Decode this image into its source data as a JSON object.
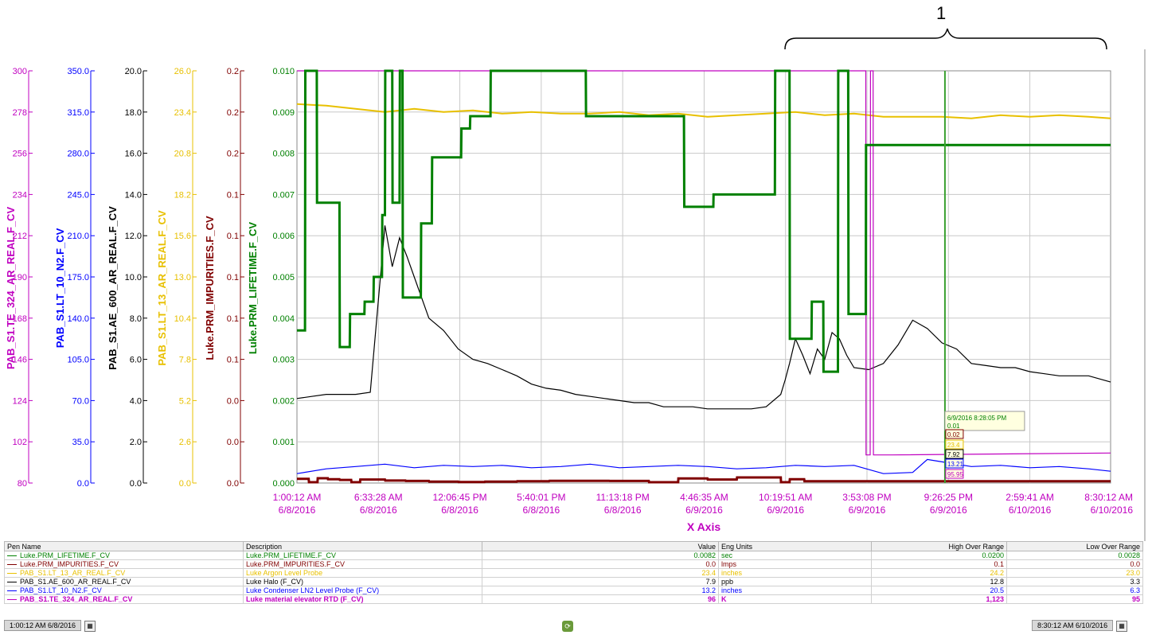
{
  "annotation": {
    "label": "1"
  },
  "chart_data": {
    "type": "line",
    "x_label": "X Axis",
    "x_ticks": [
      {
        "time": "1:00:12 AM",
        "date": "6/8/2016"
      },
      {
        "time": "6:33:28 AM",
        "date": "6/8/2016"
      },
      {
        "time": "12:06:45 PM",
        "date": "6/8/2016"
      },
      {
        "time": "5:40:01 PM",
        "date": "6/8/2016"
      },
      {
        "time": "11:13:18 PM",
        "date": "6/8/2016"
      },
      {
        "time": "4:46:35 AM",
        "date": "6/9/2016"
      },
      {
        "time": "10:19:51 AM",
        "date": "6/9/2016"
      },
      {
        "time": "3:53:08 PM",
        "date": "6/9/2016"
      },
      {
        "time": "9:26:25 PM",
        "date": "6/9/2016"
      },
      {
        "time": "2:59:41 AM",
        "date": "6/10/2016"
      },
      {
        "time": "8:30:12 AM",
        "date": "6/10/2016"
      }
    ],
    "x_hours": [
      0,
      5.5546,
      11.1093,
      16.6639,
      22.2186,
      27.7732,
      33.3278,
      38.8825,
      44.4371,
      49.9918,
      55.5
    ],
    "grid": true,
    "y_axes": [
      {
        "name": "PAB_S1.TE_324_AR_REAL.F_CV",
        "color": "#c000c0",
        "ticks": [
          "300",
          "278",
          "256",
          "234",
          "212",
          "190",
          "168",
          "146",
          "124",
          "102",
          "80"
        ],
        "range": [
          80,
          300
        ]
      },
      {
        "name": "PAB_S1.LT_10_N2.F_CV",
        "color": "#0000ff",
        "ticks": [
          "350.0",
          "315.0",
          "280.0",
          "245.0",
          "210.0",
          "175.0",
          "140.0",
          "105.0",
          "70.0",
          "35.0",
          "0.0"
        ],
        "range": [
          0,
          350
        ]
      },
      {
        "name": "PAB_S1.AE_600_AR_REAL.F_CV",
        "color": "#000000",
        "ticks": [
          "20.0",
          "18.0",
          "16.0",
          "14.0",
          "12.0",
          "10.0",
          "8.0",
          "6.0",
          "4.0",
          "2.0",
          "0.0"
        ],
        "range": [
          0,
          20
        ]
      },
      {
        "name": "PAB_S1.LT_13_AR_REAL.F_CV",
        "color": "#e8c000",
        "ticks": [
          "26.0",
          "23.4",
          "20.8",
          "18.2",
          "15.6",
          "13.0",
          "10.4",
          "7.8",
          "5.2",
          "2.6",
          "0.0"
        ],
        "range": [
          0,
          26
        ]
      },
      {
        "name": "Luke.PRM_IMPURITIES.F_CV",
        "color": "#800000",
        "ticks": [
          "0.2",
          "0.2",
          "0.2",
          "0.1",
          "0.1",
          "0.1",
          "0.1",
          "0.1",
          "0.0",
          "0.0",
          "0.0"
        ],
        "range": [
          0,
          0.2
        ]
      },
      {
        "name": "Luke.PRM_LIFETIME.F_CV",
        "color": "#008000",
        "ticks": [
          "0.010",
          "0.009",
          "0.008",
          "0.007",
          "0.006",
          "0.005",
          "0.004",
          "0.003",
          "0.002",
          "0.001",
          "0.000"
        ],
        "range": [
          0,
          0.01
        ]
      }
    ],
    "series": [
      {
        "name": "Luke.PRM_LIFETIME.F_CV",
        "color": "#008000",
        "axis": 5,
        "step": true,
        "x": [
          0,
          0.55,
          0.57,
          1.35,
          1.37,
          2.9,
          2.92,
          3.6,
          3.62,
          4.3,
          4.32,
          4.6,
          4.62,
          5.22,
          5.24,
          5.8,
          5.82,
          6.0,
          6.02,
          6.5,
          6.52,
          7.0,
          7.02,
          7.2,
          7.22,
          7.9,
          7.92,
          8.45,
          8.47,
          9.2,
          9.22,
          11.2,
          11.22,
          11.8,
          11.82,
          13.2,
          13.22,
          14.9,
          14.92,
          17.2,
          17.22,
          19.7,
          19.72,
          26.4,
          26.42,
          28.4,
          28.42,
          30.2,
          30.22,
          32.6,
          32.62,
          33.6,
          33.62,
          34.2,
          34.22,
          35.1,
          35.12,
          35.9,
          35.92,
          36.9,
          36.92,
          37.6,
          37.62,
          38.3,
          38.32,
          38.8,
          38.82,
          41.1,
          41.12,
          55.5
        ],
        "y": [
          0.0037,
          0.0037,
          0.01,
          0.01,
          0.0068,
          0.0068,
          0.0033,
          0.0033,
          0.0041,
          0.0041,
          0.0041,
          0.0041,
          0.0044,
          0.0044,
          0.005,
          0.005,
          0.0065,
          0.0065,
          0.01,
          0.01,
          0.0068,
          0.0068,
          0.01,
          0.01,
          0.0045,
          0.0045,
          0.0045,
          0.0045,
          0.0063,
          0.0063,
          0.0079,
          0.0079,
          0.0086,
          0.0086,
          0.0089,
          0.0089,
          0.01,
          0.01,
          0.01,
          0.01,
          0.01,
          0.01,
          0.0089,
          0.0089,
          0.0067,
          0.0067,
          0.007,
          0.007,
          0.007,
          0.007,
          0.01,
          0.01,
          0.0035,
          0.0035,
          0.0035,
          0.0035,
          0.0044,
          0.0044,
          0.0027,
          0.0027,
          0.01,
          0.01,
          0.0041,
          0.0041,
          0.0041,
          0.0041,
          0.0082,
          0.0082,
          0.0082,
          0.0082
        ]
      },
      {
        "name": "Luke.PRM_IMPURITIES.F_CV",
        "color": "#800000",
        "axis": 4,
        "step": true,
        "x": [
          0,
          0.8,
          0.82,
          1.4,
          1.42,
          2.1,
          2.12,
          2.9,
          2.92,
          3.7,
          3.72,
          4.3,
          4.32,
          4.8,
          4.82,
          5.2,
          5.22,
          6.0,
          6.02,
          6.5,
          6.52,
          7.4,
          7.42,
          9.0,
          9.02,
          11.0,
          11.02,
          12.8,
          12.82,
          15.0,
          15.02,
          17.2,
          17.22,
          19.0,
          19.02,
          21.3,
          21.32,
          24.0,
          24.02,
          26.0,
          26.02,
          28.0,
          28.02,
          30.0,
          30.02,
          33.0,
          33.02,
          33.6,
          33.62,
          34.6,
          34.62,
          35.1,
          35.12,
          36.2,
          36.22,
          36.7,
          36.72,
          37.5,
          37.52,
          38.3,
          38.32,
          38.8,
          38.82,
          55.5
        ],
        "y": [
          0.002,
          0.002,
          0.0004,
          0.0004,
          0.0023,
          0.0023,
          0.0018,
          0.0018,
          0.0015,
          0.0015,
          0.0004,
          0.0004,
          0.0017,
          0.0017,
          0.0017,
          0.0017,
          0.0017,
          0.0017,
          0.0012,
          0.0012,
          0.0012,
          0.0012,
          0.001,
          0.001,
          0.0007,
          0.0007,
          0.0005,
          0.0005,
          0.0007,
          0.0007,
          0.0009,
          0.0009,
          0.0011,
          0.0011,
          0.0011,
          0.0011,
          0.001,
          0.001,
          0.0004,
          0.0004,
          0.0022,
          0.0022,
          0.0017,
          0.0017,
          0.0027,
          0.0027,
          0.0004,
          0.0004,
          0.0018,
          0.0018,
          0.0009,
          0.0009,
          0.0009,
          0.0009,
          0.0009,
          0.0009,
          0.0009,
          0.0009,
          0.0009,
          0.0009,
          0.0009,
          0.0009,
          0.0009,
          0.0009
        ]
      },
      {
        "name": "PAB_S1.AE_600_AR_REAL.F_CV",
        "color": "#000000",
        "axis": 2,
        "step": false,
        "x": [
          0,
          1,
          2,
          3,
          4,
          5,
          6,
          6.5,
          7,
          7.5,
          8,
          9,
          10,
          11,
          12,
          13,
          14,
          15,
          16,
          17,
          18,
          19,
          20,
          21,
          22,
          23,
          24,
          25,
          26,
          27,
          28,
          29,
          30,
          31,
          32,
          33,
          33.3,
          33.6,
          34,
          34.5,
          35,
          35.5,
          36,
          36.5,
          37,
          37.5,
          38,
          39,
          40,
          41,
          42,
          43,
          44,
          45,
          46,
          47,
          48,
          49,
          50,
          51,
          52,
          53,
          54,
          55.5
        ],
        "y": [
          4.1,
          4.2,
          4.3,
          4.3,
          4.3,
          4.4,
          12.5,
          10.5,
          11.9,
          11.0,
          10.0,
          8.0,
          7.4,
          6.5,
          6.0,
          5.8,
          5.5,
          5.2,
          4.8,
          4.6,
          4.5,
          4.3,
          4.2,
          4.1,
          4.0,
          3.9,
          3.9,
          3.7,
          3.7,
          3.7,
          3.6,
          3.6,
          3.6,
          3.6,
          3.7,
          4.3,
          5.0,
          5.8,
          7.0,
          6.2,
          5.3,
          6.5,
          6.0,
          7.3,
          7.0,
          6.2,
          5.6,
          5.5,
          5.8,
          6.7,
          7.9,
          7.5,
          6.8,
          6.5,
          5.8,
          5.7,
          5.6,
          5.6,
          5.4,
          5.3,
          5.2,
          5.2,
          5.2,
          4.9
        ]
      },
      {
        "name": "PAB_S1.LT_13_AR_REAL.F_CV",
        "color": "#e8c000",
        "axis": 3,
        "step": false,
        "x": [
          0,
          2,
          4,
          6,
          8,
          10,
          12,
          14,
          16,
          18,
          20,
          22,
          24,
          26,
          28,
          30,
          32,
          34,
          36,
          38,
          40,
          42,
          44,
          46,
          48,
          50,
          52,
          54,
          55.5
        ],
        "y": [
          23.9,
          23.8,
          23.6,
          23.4,
          23.6,
          23.4,
          23.5,
          23.3,
          23.4,
          23.3,
          23.3,
          23.4,
          23.2,
          23.3,
          23.1,
          23.2,
          23.3,
          23.4,
          23.2,
          23.3,
          23.1,
          23.1,
          23.1,
          23.0,
          23.2,
          23.1,
          23.2,
          23.1,
          23.0
        ]
      },
      {
        "name": "PAB_S1.LT_10_N2.F_CV",
        "color": "#0000ff",
        "axis": 1,
        "step": false,
        "x": [
          0,
          2,
          4,
          6,
          8,
          10,
          12,
          14,
          16,
          18,
          20,
          22,
          24,
          26,
          28,
          30,
          32,
          34,
          36,
          38,
          40,
          42,
          43,
          44,
          46,
          48,
          50,
          52,
          54,
          55.5
        ],
        "y": [
          8,
          12,
          14,
          16,
          13,
          15,
          14,
          15,
          13,
          14,
          16,
          13,
          14,
          15,
          14,
          12,
          13,
          15,
          14,
          15,
          8,
          9,
          20,
          18,
          14,
          15,
          13,
          14,
          12,
          10
        ]
      },
      {
        "name": "PAB_S1.TE_324_AR_REAL.F_CV",
        "color": "#c000c0",
        "axis": 0,
        "step": true,
        "x": [
          0,
          38.8,
          38.82,
          39.1,
          39.12,
          39.3,
          39.32,
          40.6,
          40.62,
          55.5
        ],
        "y": [
          300,
          300,
          95,
          95,
          300,
          300,
          95,
          95,
          95,
          96
        ]
      }
    ],
    "cursor": {
      "x_hours": 44.2,
      "time": "6/9/2016 8:28:05 PM",
      "values": [
        "0.01",
        "0.02",
        "23.4",
        "7.92",
        "13.21",
        "95.95"
      ]
    }
  },
  "legend": {
    "headers": [
      "Pen Name",
      "Description",
      "Value",
      "Eng Units",
      "High Over Range",
      "Low Over Range"
    ],
    "rows": [
      {
        "pen": "Luke.PRM_LIFETIME.F_CV",
        "desc": "Luke.PRM_LIFETIME.F_CV",
        "value": "0.0082",
        "units": "sec",
        "high": "0.0200",
        "low": "0.0028",
        "color": "#008000"
      },
      {
        "pen": "Luke.PRM_IMPURITIES.F_CV",
        "desc": "Luke.PRM_IMPURITIES.F_CV",
        "value": "0.0",
        "units": "lmps",
        "high": "0.1",
        "low": "0.0",
        "color": "#800000"
      },
      {
        "pen": "PAB_S1.LT_13_AR_REAL.F_CV",
        "desc": "Luke Argon Level Probe",
        "value": "23.4",
        "units": "inches",
        "high": "24.2",
        "low": "23.0",
        "color": "#e8c000"
      },
      {
        "pen": "PAB_S1.AE_600_AR_REAL.F_CV",
        "desc": "Luke Halo (F_CV)",
        "value": "7.9",
        "units": "ppb",
        "high": "12.8",
        "low": "3.3",
        "color": "#000000"
      },
      {
        "pen": "PAB_S1.LT_10_N2.F_CV",
        "desc": "Luke Condenser LN2 Level Probe (F_CV)",
        "value": "13.2",
        "units": "inches",
        "high": "20.5",
        "low": "6.3",
        "color": "#0000ff"
      },
      {
        "pen": "PAB_S1.TE_324_AR_REAL.F_CV",
        "desc": "Luke material elevator RTD (F_CV)",
        "value": "96",
        "units": "K",
        "high": "1,123",
        "low": "95",
        "color": "#c000c0"
      }
    ]
  },
  "status": {
    "start": "1:00:12 AM 6/8/2016",
    "end": "8:30:12 AM 6/10/2016"
  }
}
